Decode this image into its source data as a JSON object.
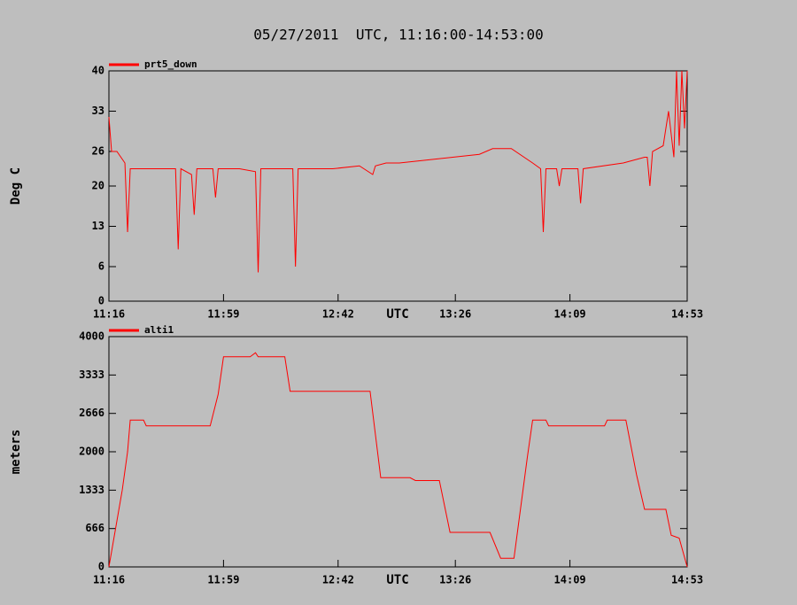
{
  "title": "05/27/2011  UTC, 11:16:00-14:53:00",
  "chart_data": [
    {
      "type": "line",
      "y_label": "Deg C",
      "x_label": "UTC",
      "x": [
        "11:16",
        "11:17",
        "11:19",
        "11:22",
        "11:23",
        "11:24",
        "11:28",
        "11:33",
        "11:41",
        "11:42",
        "11:43",
        "11:47",
        "11:48",
        "11:49",
        "11:55",
        "11:56",
        "11:57",
        "12:05",
        "12:11",
        "12:12",
        "12:13",
        "12:20",
        "12:25",
        "12:26",
        "12:27",
        "12:40",
        "12:50",
        "12:55",
        "12:56",
        "13:00",
        "13:05",
        "13:15",
        "13:25",
        "13:35",
        "13:40",
        "13:47",
        "13:55",
        "13:58",
        "13:59",
        "14:00",
        "14:04",
        "14:05",
        "14:06",
        "14:12",
        "14:13",
        "14:14",
        "14:29",
        "14:37",
        "14:38",
        "14:39",
        "14:40",
        "14:44",
        "14:46",
        "14:48",
        "14:49",
        "14:50",
        "14:51",
        "14:52",
        "14:53"
      ],
      "series": [
        {
          "name": "prt5_down",
          "color": "#ff0000",
          "values": [
            32,
            26,
            26,
            24,
            12,
            23,
            23,
            23,
            23,
            9,
            23,
            22,
            15,
            23,
            23,
            18,
            23,
            23,
            22.5,
            5,
            23,
            23,
            23,
            6,
            23,
            23,
            23.5,
            22,
            23.5,
            24,
            24,
            24.5,
            25,
            25.5,
            26.5,
            26.5,
            24,
            23,
            12,
            23,
            23,
            20,
            23,
            23,
            17,
            23,
            24,
            25,
            25,
            20,
            26,
            27,
            33,
            25,
            40,
            27,
            40,
            30,
            40
          ]
        }
      ],
      "xlim": [
        "11:16",
        "14:53"
      ],
      "xticks": [
        "11:16",
        "11:59",
        "12:42",
        "13:26",
        "14:09",
        "14:53"
      ],
      "ylim": [
        0,
        40
      ],
      "yticks": [
        0,
        6,
        13,
        20,
        26,
        33,
        40
      ]
    },
    {
      "type": "line",
      "y_label": "meters",
      "x_label": "UTC",
      "x": [
        "11:16",
        "11:21",
        "11:23",
        "11:24",
        "11:29",
        "11:30",
        "11:54",
        "11:57",
        "11:59",
        "12:09",
        "12:11",
        "12:12",
        "12:22",
        "12:24",
        "12:54",
        "12:58",
        "13:09",
        "13:11",
        "13:20",
        "13:24",
        "13:39",
        "13:43",
        "13:48",
        "13:53",
        "13:55",
        "14:00",
        "14:01",
        "14:22",
        "14:23",
        "14:30",
        "14:34",
        "14:37",
        "14:45",
        "14:47",
        "14:50",
        "14:53"
      ],
      "series": [
        {
          "name": "alti1",
          "color": "#ff0000",
          "values": [
            0,
            1333,
            2000,
            2550,
            2550,
            2450,
            2450,
            3000,
            3650,
            3650,
            3720,
            3650,
            3650,
            3050,
            3050,
            1550,
            1550,
            1500,
            1500,
            600,
            600,
            150,
            150,
            1900,
            2550,
            2550,
            2450,
            2450,
            2550,
            2550,
            1600,
            1000,
            1000,
            550,
            500,
            0
          ]
        }
      ],
      "xlim": [
        "11:16",
        "14:53"
      ],
      "xticks": [
        "11:16",
        "11:59",
        "12:42",
        "13:26",
        "14:09",
        "14:53"
      ],
      "ylim": [
        0,
        4000
      ],
      "yticks": [
        0,
        666,
        1333,
        2000,
        2666,
        3333,
        4000
      ]
    }
  ]
}
